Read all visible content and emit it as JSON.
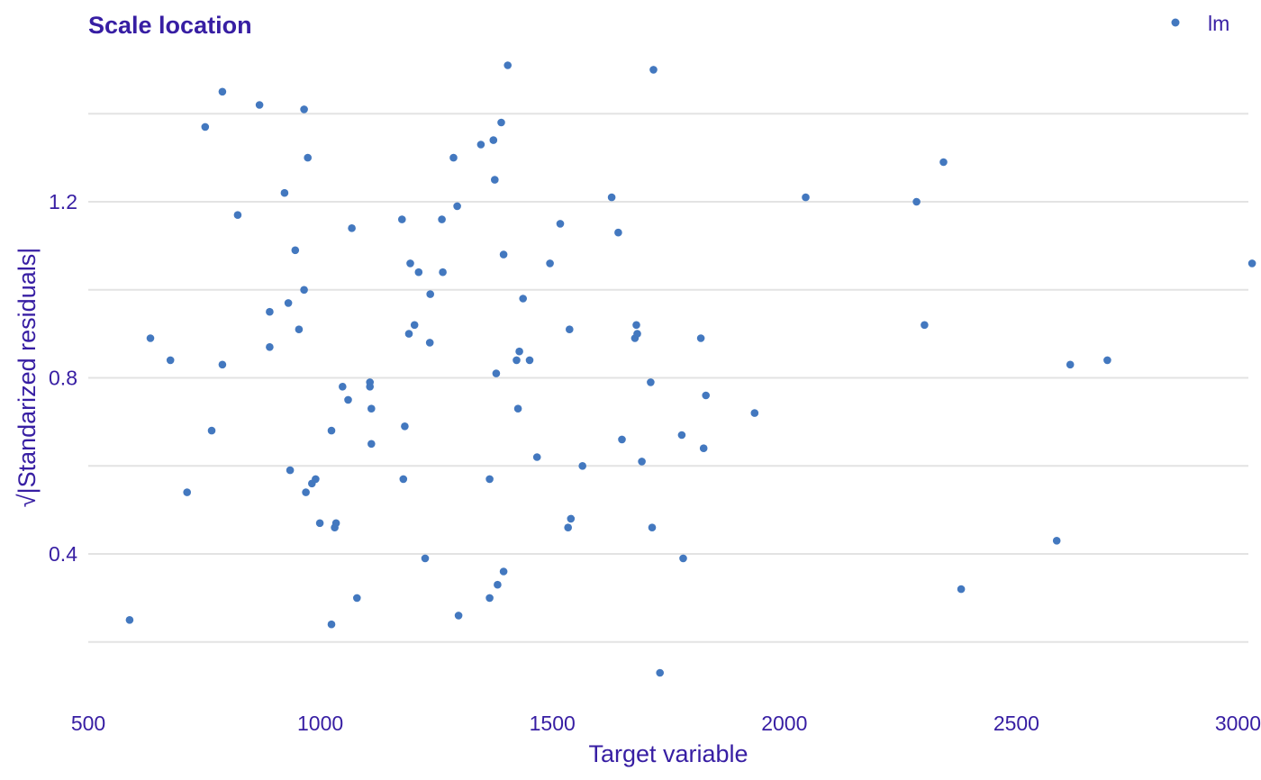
{
  "colors": {
    "text": "#371ea3",
    "point": "#4378bf",
    "grid": "#e3e3e3"
  },
  "chart_data": {
    "type": "scatter",
    "title": "Scale location",
    "xlabel": "Target variable",
    "ylabel": "√|Standarized residuals|",
    "xlim": [
      500,
      3000
    ],
    "ylim": [
      0.1,
      1.55
    ],
    "x_ticks": [
      500,
      1000,
      1500,
      2000,
      2500,
      3000
    ],
    "y_ticks": [
      0.4,
      0.8,
      1.2
    ],
    "y_tick_labels": [
      "0.4",
      "0.8",
      "1.2"
    ],
    "y_minor_gridlines": [
      0.2,
      0.6,
      1.0,
      1.4
    ],
    "legend": {
      "position": "top-right",
      "entries": [
        "lm"
      ]
    },
    "grid": true,
    "series": [
      {
        "name": "lm",
        "points": [
          [
            589,
            0.25
          ],
          [
            634,
            0.89
          ],
          [
            677,
            0.84
          ],
          [
            713,
            0.54
          ],
          [
            752,
            1.37
          ],
          [
            766,
            0.68
          ],
          [
            789,
            1.45
          ],
          [
            789,
            0.83
          ],
          [
            822,
            1.17
          ],
          [
            869,
            1.42
          ],
          [
            891,
            0.95
          ],
          [
            891,
            0.87
          ],
          [
            923,
            1.22
          ],
          [
            931,
            0.97
          ],
          [
            935,
            0.59
          ],
          [
            946,
            1.09
          ],
          [
            954,
            0.91
          ],
          [
            965,
            1.41
          ],
          [
            965,
            1.0
          ],
          [
            969,
            0.54
          ],
          [
            973,
            1.3
          ],
          [
            982,
            0.56
          ],
          [
            990,
            0.57
          ],
          [
            999,
            0.47
          ],
          [
            1024,
            0.24
          ],
          [
            1024,
            0.68
          ],
          [
            1031,
            0.46
          ],
          [
            1034,
            0.47
          ],
          [
            1048,
            0.78
          ],
          [
            1060,
            0.75
          ],
          [
            1068,
            1.14
          ],
          [
            1079,
            0.3
          ],
          [
            1107,
            0.79
          ],
          [
            1107,
            0.78
          ],
          [
            1110,
            0.73
          ],
          [
            1110,
            0.65
          ],
          [
            1176,
            1.16
          ],
          [
            1179,
            0.57
          ],
          [
            1182,
            0.69
          ],
          [
            1191,
            0.9
          ],
          [
            1194,
            1.06
          ],
          [
            1203,
            0.92
          ],
          [
            1212,
            1.04
          ],
          [
            1226,
            0.39
          ],
          [
            1236,
            0.88
          ],
          [
            1237,
            0.99
          ],
          [
            1262,
            1.16
          ],
          [
            1264,
            1.04
          ],
          [
            1287,
            1.3
          ],
          [
            1295,
            1.19
          ],
          [
            1298,
            0.26
          ],
          [
            1346,
            1.33
          ],
          [
            1365,
            0.57
          ],
          [
            1365,
            0.3
          ],
          [
            1373,
            1.34
          ],
          [
            1376,
            1.25
          ],
          [
            1379,
            0.81
          ],
          [
            1382,
            0.33
          ],
          [
            1390,
            1.38
          ],
          [
            1395,
            1.08
          ],
          [
            1395,
            0.36
          ],
          [
            1404,
            1.51
          ],
          [
            1423,
            0.84
          ],
          [
            1426,
            0.73
          ],
          [
            1429,
            0.86
          ],
          [
            1437,
            0.98
          ],
          [
            1451,
            0.84
          ],
          [
            1467,
            0.62
          ],
          [
            1495,
            1.06
          ],
          [
            1517,
            1.15
          ],
          [
            1534,
            0.46
          ],
          [
            1537,
            0.91
          ],
          [
            1540,
            0.48
          ],
          [
            1565,
            0.6
          ],
          [
            1628,
            1.21
          ],
          [
            1642,
            1.13
          ],
          [
            1650,
            0.66
          ],
          [
            1678,
            0.89
          ],
          [
            1681,
            0.92
          ],
          [
            1683,
            0.9
          ],
          [
            1693,
            0.61
          ],
          [
            1712,
            0.79
          ],
          [
            1715,
            0.46
          ],
          [
            1718,
            1.5
          ],
          [
            1732,
            0.13
          ],
          [
            1779,
            0.67
          ],
          [
            1782,
            0.39
          ],
          [
            1820,
            0.89
          ],
          [
            1826,
            0.64
          ],
          [
            1831,
            0.76
          ],
          [
            1936,
            0.72
          ],
          [
            2046,
            1.21
          ],
          [
            2285,
            1.2
          ],
          [
            2302,
            0.92
          ],
          [
            2343,
            1.29
          ],
          [
            2381,
            0.32
          ],
          [
            2587,
            0.43
          ],
          [
            2616,
            0.83
          ],
          [
            2696,
            0.84
          ],
          [
            3008,
            1.06
          ]
        ]
      }
    ]
  }
}
